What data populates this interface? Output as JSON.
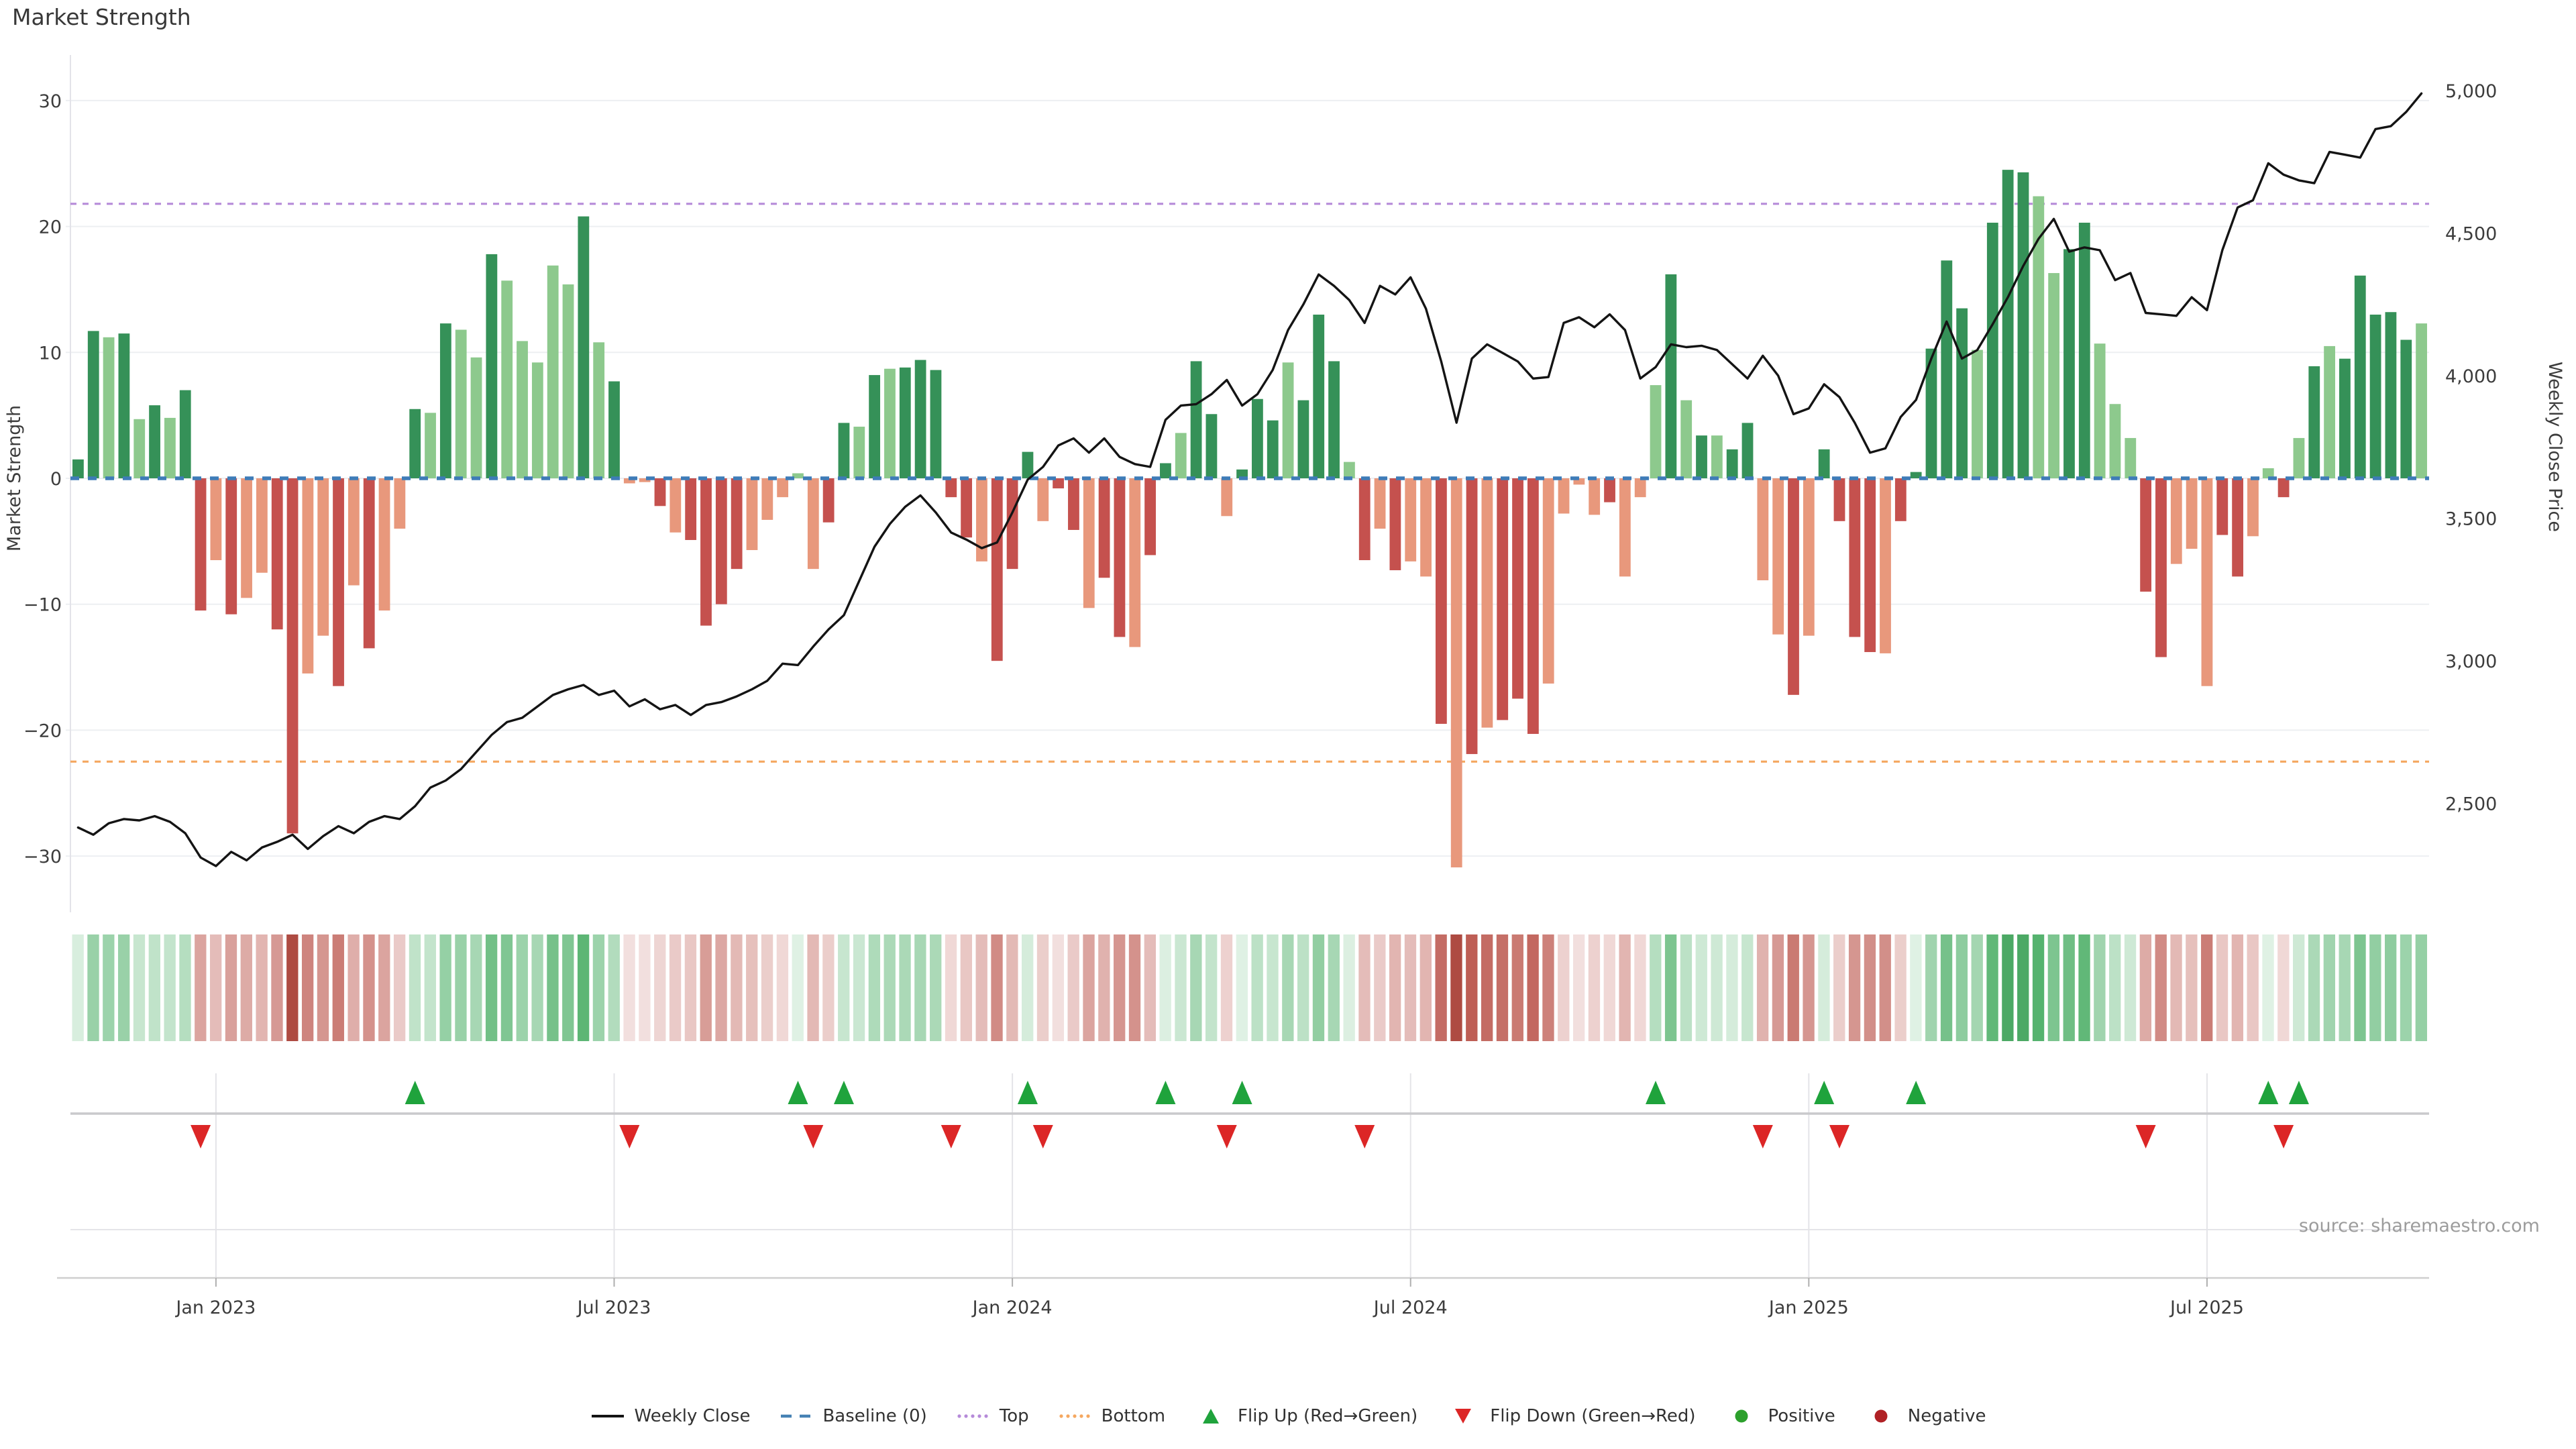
{
  "title": "Market Strength",
  "source": "source: sharemaestro.com",
  "legend": [
    {
      "label": "Weekly Close",
      "swatch": "line",
      "color": "#141414"
    },
    {
      "label": "Baseline (0)",
      "swatch": "dashes",
      "color": "#4682B4"
    },
    {
      "label": "Top",
      "swatch": "dots",
      "color": "#B68BD9"
    },
    {
      "label": "Bottom",
      "swatch": "dots",
      "color": "#F5A860"
    },
    {
      "label": "Flip Up (Red→Green)",
      "swatch": "tri-up",
      "color": "#1FA33C"
    },
    {
      "label": "Flip Down (Green→Red)",
      "swatch": "tri-down",
      "color": "#DC2626"
    },
    {
      "label": "Positive",
      "swatch": "circle",
      "color": "#2CA02C"
    },
    {
      "label": "Negative",
      "swatch": "circle",
      "color": "#B02125"
    }
  ],
  "colors": {
    "bar_pos_dark": "#359158",
    "bar_pos_light": "#8DC98D",
    "bar_neg_dark": "#C5514E",
    "bar_neg_light": "#E8987C",
    "price_line": "#141414",
    "baseline": "#3E7CB8",
    "top_line": "#B68BD9",
    "bottom_line": "#F5A860",
    "grid": "#EDEFF2",
    "spine": "#E3E3E9",
    "axis_text": "#3C3C3C",
    "marker_up": "#1FA33C",
    "marker_down": "#DC2626",
    "marker_midline": "#C9C9CC",
    "panel_grid": "#E4E4E8",
    "bottom_axis": "#CFCFCF"
  },
  "chart_data": {
    "type": "combo",
    "title": "Market Strength",
    "n_weeks": 154,
    "x_axis": {
      "tick_labels": [
        "Jan 2023",
        "Jul 2023",
        "Jan 2024",
        "Jul 2024",
        "Jan 2025",
        "Jul 2025"
      ],
      "tick_weeks": [
        9,
        35,
        61,
        87,
        113,
        139
      ]
    },
    "y_left": {
      "label": "Market Strength",
      "tick_labels": [
        "30",
        "20",
        "10",
        "0",
        "−10",
        "−20",
        "−30"
      ],
      "tick_values": [
        30,
        20,
        10,
        0,
        -10,
        -20,
        -30
      ]
    },
    "y_right": {
      "label": "Weekly Close Price",
      "tick_labels": [
        "5,000",
        "4,500",
        "4,000",
        "3,500",
        "3,000",
        "2,500"
      ],
      "tick_values": [
        5000,
        4500,
        4000,
        3500,
        3000,
        2500
      ]
    },
    "baseline": 0,
    "top_threshold": 21.8,
    "bottom_threshold": -22.5,
    "series": [
      {
        "name": "Market Strength",
        "type": "bar",
        "values": [
          1.5,
          11.7,
          11.2,
          11.5,
          4.7,
          5.8,
          4.8,
          7,
          -10.5,
          -6.5,
          -10.8,
          -9.5,
          -7.5,
          -12,
          -28.2,
          -15.5,
          -12.5,
          -16.5,
          -8.5,
          -13.5,
          -10.5,
          -4,
          5.5,
          5.2,
          12.3,
          11.8,
          9.6,
          17.8,
          15.7,
          10.9,
          9.2,
          16.9,
          15.4,
          20.8,
          10.8,
          7.7,
          -0.4,
          -0.3,
          -2.2,
          -4.3,
          -4.9,
          -11.7,
          -10,
          -7.2,
          -5.7,
          -3.3,
          -1.5,
          0.4,
          -7.2,
          -3.5,
          4.4,
          4.1,
          8.2,
          8.7,
          8.8,
          9.4,
          8.6,
          -1.5,
          -4.7,
          -6.6,
          -14.5,
          -7.2,
          2.1,
          -3.4,
          -0.8,
          -4.1,
          -10.3,
          -7.9,
          -12.6,
          -13.4,
          -6.1,
          1.2,
          3.6,
          9.3,
          5.1,
          -3,
          0.7,
          6.3,
          4.6,
          9.2,
          6.2,
          13,
          9.3,
          1.3,
          -6.5,
          -4,
          -7.3,
          -6.6,
          -7.8,
          -19.5,
          -30.9,
          -21.9,
          -19.8,
          -19.2,
          -17.5,
          -20.3,
          -16.3,
          -2.8,
          -0.5,
          -2.9,
          -1.9,
          -7.8,
          -1.5,
          7.4,
          16.2,
          6.2,
          3.4,
          3.4,
          2.3,
          4.4,
          -8.1,
          -12.4,
          -17.2,
          -12.5,
          2.3,
          -3.4,
          -12.6,
          -13.8,
          -13.9,
          -3.4,
          0.5,
          10.3,
          17.3,
          13.5,
          10.2,
          20.3,
          24.5,
          24.3,
          22.4,
          16.3,
          18.2,
          20.3,
          10.7,
          5.9,
          3.2,
          -9,
          -14.2,
          -6.8,
          -5.6,
          -16.5,
          -4.5,
          -7.8,
          -4.6,
          0.8,
          -1.5,
          3.2,
          8.9,
          10.5,
          9.5,
          16.1,
          13,
          13.2,
          11,
          12.3
        ],
        "shades": "ddldldlddldllddlldldlldldlldllllldldlldlddddlllllddldldddddldddlddlddlddlddldddldddldldlldldldddlllldllldldlddlldlddddldddddldddllddlllddlllddlldldldddddldldld"
      },
      {
        "name": "Weekly Close",
        "type": "line",
        "values": [
          2415,
          2390,
          2430,
          2445,
          2440,
          2455,
          2435,
          2395,
          2310,
          2280,
          2330,
          2300,
          2345,
          2365,
          2390,
          2340,
          2385,
          2420,
          2395,
          2435,
          2455,
          2445,
          2490,
          2555,
          2580,
          2620,
          2680,
          2740,
          2785,
          2800,
          2840,
          2880,
          2900,
          2915,
          2880,
          2895,
          2840,
          2865,
          2830,
          2845,
          2810,
          2845,
          2855,
          2875,
          2900,
          2930,
          2990,
          2985,
          3050,
          3110,
          3160,
          3280,
          3400,
          3480,
          3540,
          3580,
          3520,
          3450,
          3425,
          3395,
          3415,
          3520,
          3635,
          3680,
          3755,
          3780,
          3730,
          3780,
          3715,
          3690,
          3680,
          3845,
          3895,
          3900,
          3935,
          3985,
          3895,
          3935,
          4020,
          4160,
          4250,
          4355,
          4315,
          4265,
          4185,
          4315,
          4285,
          4345,
          4235,
          4050,
          3835,
          4060,
          4110,
          4080,
          4050,
          3990,
          3995,
          4185,
          4205,
          4170,
          4215,
          4160,
          3990,
          4030,
          4110,
          4100,
          4105,
          4090,
          4040,
          3990,
          4070,
          4000,
          3865,
          3885,
          3970,
          3925,
          3835,
          3730,
          3745,
          3855,
          3915,
          4060,
          4190,
          4060,
          4090,
          4180,
          4275,
          4385,
          4480,
          4550,
          4435,
          4450,
          4440,
          4335,
          4360,
          4220,
          4215,
          4210,
          4275,
          4230,
          4440,
          4590,
          4615,
          4745,
          4705,
          4685,
          4675,
          4785,
          4775,
          4765,
          4865,
          4875,
          4925,
          4990
        ]
      }
    ],
    "flip_up_weeks": [
      22,
      47,
      50,
      62,
      71,
      76,
      103,
      114,
      120,
      143,
      145
    ],
    "flip_down_weeks": [
      8,
      36,
      48,
      57,
      63,
      75,
      84,
      110,
      115,
      135,
      144
    ],
    "heatmap": {
      "note": "heat strip mirrors weekly Market Strength values"
    },
    "grid": true,
    "legend_position": "bottom-center"
  }
}
